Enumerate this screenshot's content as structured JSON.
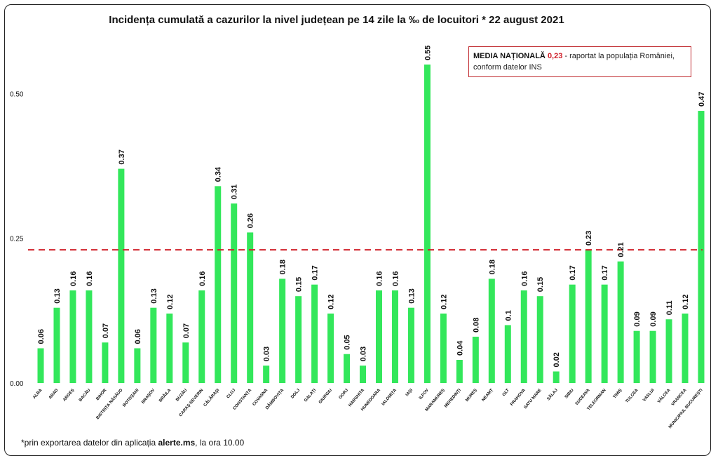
{
  "chart_data": {
    "type": "bar",
    "title": "Incidența cumulată a cazurilor la nivel județean pe 14 zile la ‰ de locuitori *  22 august 2021",
    "ylim": [
      0,
      0.55
    ],
    "yticks": [
      "0.00",
      "0.25",
      "0.50"
    ],
    "ytick_values": [
      0,
      0.25,
      0.5
    ],
    "bar_color": "#33e75b",
    "reference_line": {
      "value": 0.23,
      "color": "#d0202a",
      "style": "dashed"
    },
    "categories": [
      "ALBA",
      "ARAD",
      "ARGEȘ",
      "BACĂU",
      "BIHOR",
      "BISTRIȚA NĂSĂUD",
      "BOTOȘANI",
      "BRAȘOV",
      "BRĂILA",
      "BUZĂU",
      "CARAȘ-SEVERIN",
      "CĂLĂRAȘI",
      "CLUJ",
      "CONSTANȚA",
      "COVASNA",
      "DÂMBOVIȚA",
      "DOLJ",
      "GALAȚI",
      "GIURGIU",
      "GORJ",
      "HARGHITA",
      "HUNEDOARA",
      "IALOMIȚA",
      "IAȘI",
      "ILFOV",
      "MARAMUREȘ",
      "MEHEDINȚI",
      "MUREȘ",
      "NEAMȚ",
      "OLT",
      "PRAHOVA",
      "SATU MARE",
      "SĂLAJ",
      "SIBIU",
      "SUCEAVA",
      "TELEORMAN",
      "TIMIȘ",
      "TULCEA",
      "VASLUI",
      "VÂLCEA",
      "VRANCEA",
      "MUNICIPIUL BUCUREȘTI"
    ],
    "values": [
      0.06,
      0.13,
      0.16,
      0.16,
      0.07,
      0.37,
      0.06,
      0.13,
      0.12,
      0.07,
      0.16,
      0.34,
      0.31,
      0.26,
      0.03,
      0.18,
      0.15,
      0.17,
      0.12,
      0.05,
      0.03,
      0.16,
      0.16,
      0.13,
      0.55,
      0.12,
      0.04,
      0.08,
      0.18,
      0.1,
      0.16,
      0.15,
      0.02,
      0.17,
      0.23,
      0.17,
      0.21,
      0.09,
      0.09,
      0.11,
      0.12,
      0.47
    ],
    "value_labels": [
      "0.06",
      "0.13",
      "0.16",
      "0.16",
      "0.07",
      "0.37",
      "0.06",
      "0.13",
      "0.12",
      "0.07",
      "0.16",
      "0.34",
      "0.31",
      "0.26",
      "0.03",
      "0.18",
      "0.15",
      "0.17",
      "0.12",
      "0.05",
      "0.03",
      "0.16",
      "0.16",
      "0.13",
      "0.55",
      "0.12",
      "0.04",
      "0.08",
      "0.18",
      "0.1",
      "0.16",
      "0.15",
      "0.02",
      "0.17",
      "0.23",
      "0.17",
      "0.21",
      "0.09",
      "0.09",
      "0.11",
      "0.12",
      "0.47"
    ]
  },
  "legend": {
    "lead": "MEDIA NAȚIONALĂ",
    "value": "0,23",
    "rest": "- raportat la populația României,",
    "line2": "conform datelor INS"
  },
  "footnote": {
    "prefix": "*prin exportarea datelor din aplicația",
    "bold": "alerte.ms",
    "suffix": ", la ora 10.00"
  }
}
